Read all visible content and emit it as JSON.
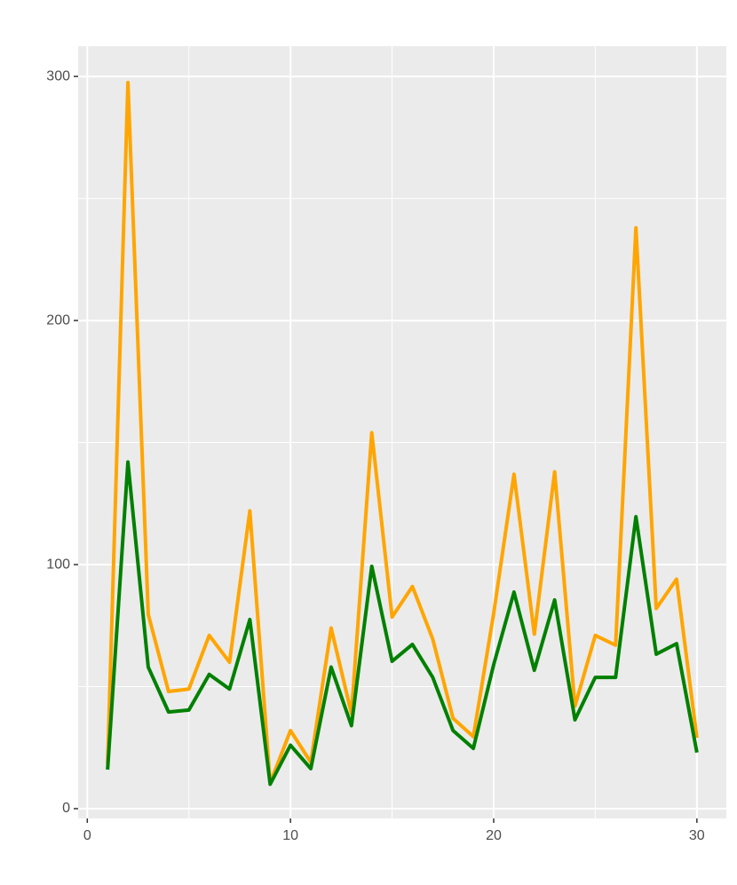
{
  "chart_data": {
    "type": "line",
    "x": [
      1,
      2,
      3,
      4,
      5,
      6,
      7,
      8,
      9,
      10,
      11,
      12,
      13,
      14,
      15,
      16,
      17,
      18,
      19,
      20,
      21,
      22,
      23,
      24,
      25,
      26,
      27,
      28,
      29,
      30
    ],
    "series": [
      {
        "color": "#ffa500",
        "values": [
          18.5,
          297.5,
          79.6,
          48,
          49,
          71,
          60,
          122,
          10.5,
          32,
          19,
          74,
          39,
          154,
          78.5,
          91,
          69.5,
          37,
          29.5,
          80,
          137,
          71.5,
          138,
          42,
          71,
          67,
          238,
          82,
          94,
          29
        ]
      },
      {
        "color": "#008000",
        "values": [
          16,
          142,
          58,
          39.6,
          40.4,
          55,
          49,
          77.5,
          10,
          26,
          16.4,
          58,
          34,
          99.3,
          60.4,
          67.3,
          53.8,
          32,
          24.7,
          59,
          88.7,
          56.7,
          85.5,
          36.4,
          53.8,
          53.8,
          119.6,
          63.3,
          67.6,
          23
        ]
      }
    ],
    "xlim": [
      -0.45,
      31.45
    ],
    "xticks": [
      0,
      10,
      20,
      30
    ],
    "minor_xticks": [
      5,
      15,
      25
    ],
    "ylim": [
      -4,
      312.4
    ],
    "yticks": [
      0,
      100,
      200,
      300
    ],
    "minor_yticks": [
      50,
      150,
      250
    ],
    "grid": true
  }
}
